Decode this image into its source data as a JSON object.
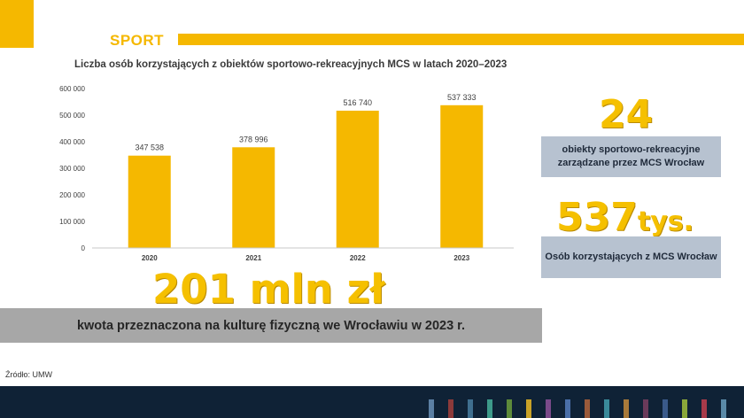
{
  "section": {
    "title": "SPORT"
  },
  "chart_data": {
    "type": "bar",
    "title": "Liczba osób korzystających z obiektów sportowo-rekreacyjnych MCS w latach 2020–2023",
    "categories": [
      "2020",
      "2021",
      "2022",
      "2023"
    ],
    "values": [
      347538,
      378996,
      516740,
      537333
    ],
    "value_labels": [
      "347 538",
      "378 996",
      "516 740",
      "537 333"
    ],
    "ylim": [
      0,
      600000
    ],
    "yticks": [
      0,
      100000,
      200000,
      300000,
      400000,
      500000,
      600000
    ],
    "ytick_labels": [
      "0",
      "100 000",
      "200 000",
      "300 000",
      "400 000",
      "500 000",
      "600 000"
    ],
    "xlabel": "",
    "ylabel": "",
    "grid": false,
    "bar_color": "#f5b800"
  },
  "stats": {
    "facilities": {
      "number": "24",
      "label": "obiekty sportowo-rekreacyjne zarządzane przez MCS Wrocław"
    },
    "users": {
      "number": "537",
      "unit": "tys.",
      "label": "Osób korzystających z MCS Wrocław"
    },
    "budget": {
      "number": "201 mln zł",
      "label": "kwota przeznaczona na kulturę fizyczną we Wrocławiu w 2023 r."
    }
  },
  "source": "Źródło: UMW",
  "colors": {
    "accent": "#f5b800",
    "box": "#b7c2d0",
    "band": "#a7a7a7",
    "footer": "#0f2236",
    "stripes": [
      "#5b7fa3",
      "#8c3a3a",
      "#3f6f8f",
      "#3d9a8a",
      "#5d8a3a",
      "#c9a227",
      "#7a4a8a",
      "#4a6fa8",
      "#9a5a3a",
      "#3a8a9a",
      "#a87a3a",
      "#6a3a5a",
      "#3a5a8a",
      "#8aa83a",
      "#a83a4a",
      "#5a8aa8"
    ]
  }
}
